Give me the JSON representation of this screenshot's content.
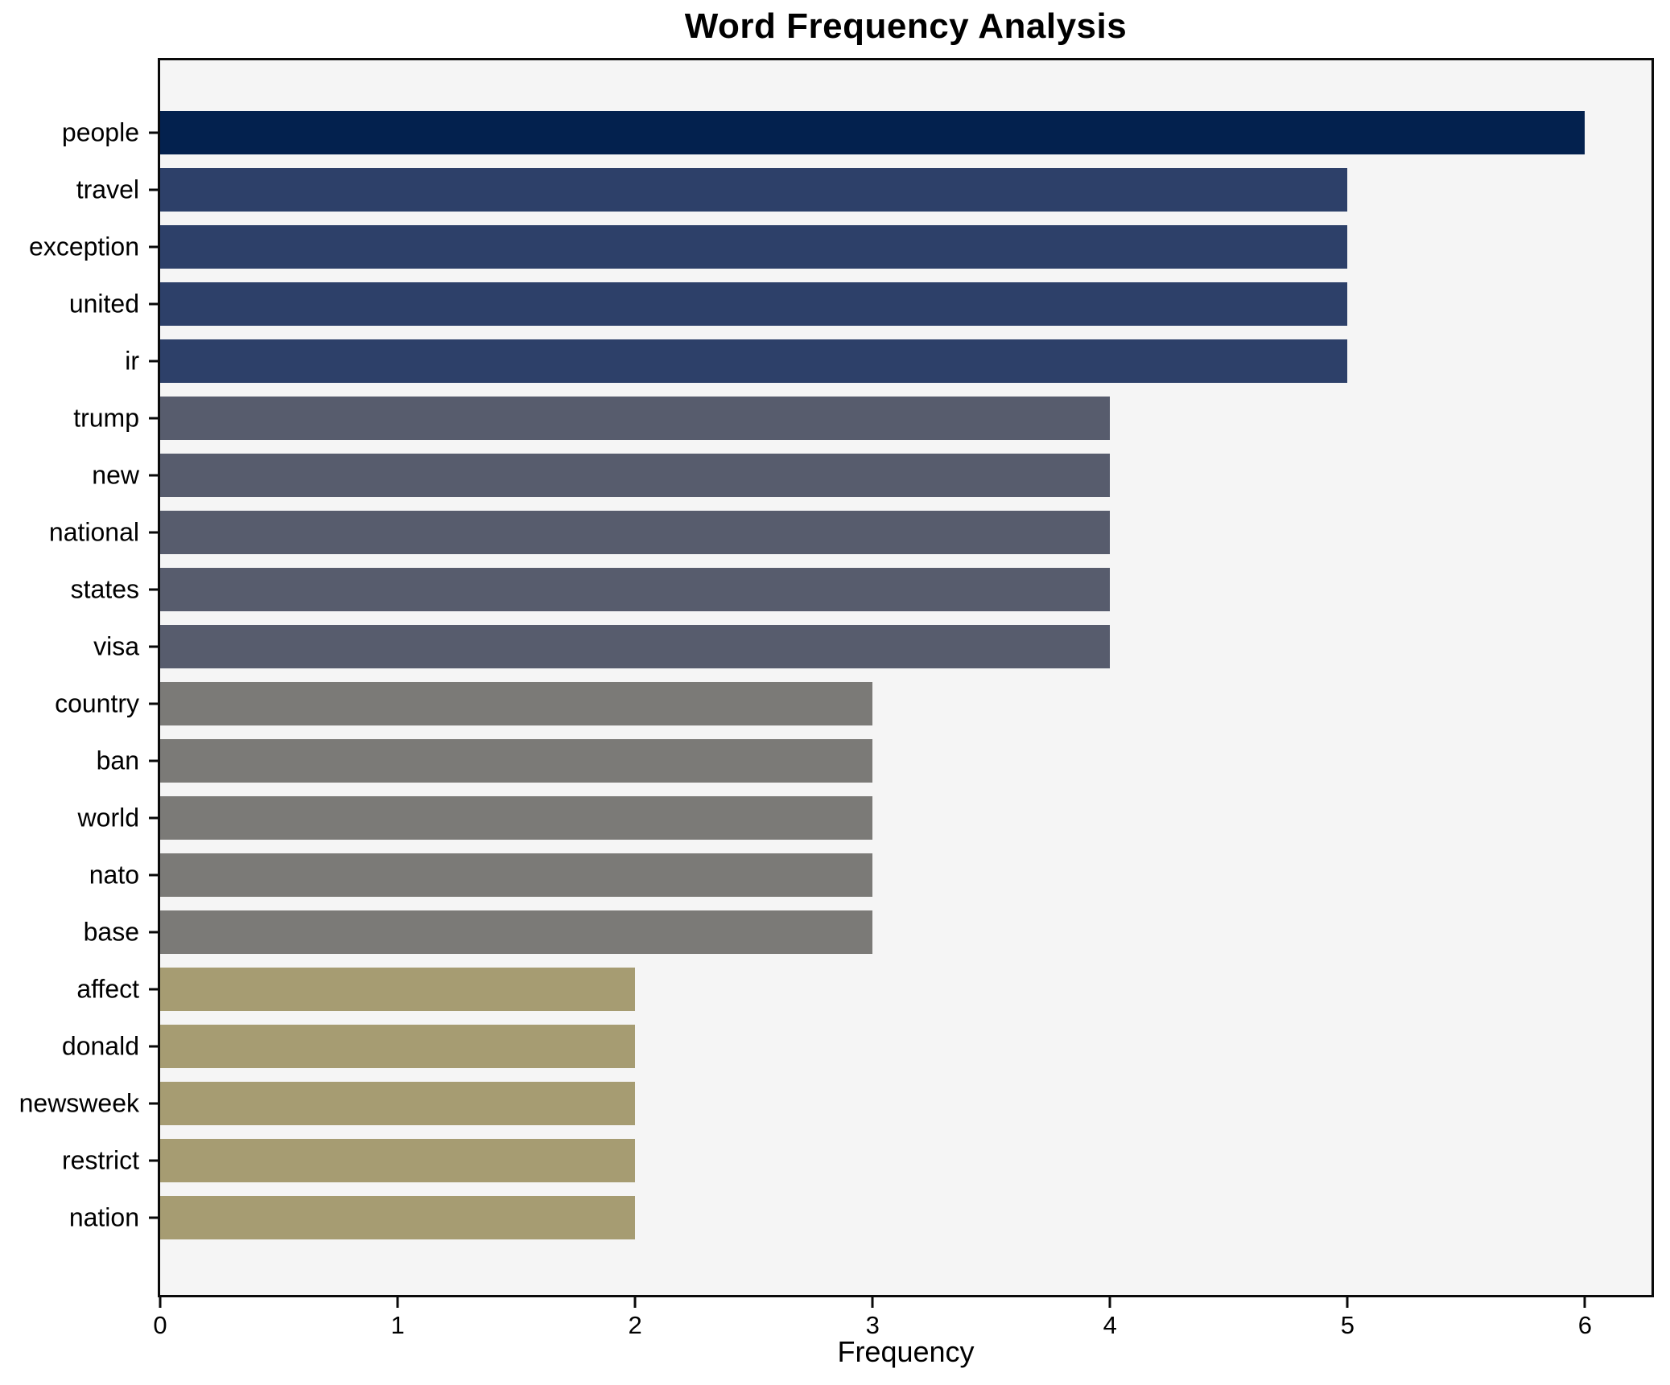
{
  "chart_data": {
    "type": "bar",
    "orientation": "horizontal",
    "title": "Word Frequency Analysis",
    "xlabel": "Frequency",
    "ylabel": "",
    "categories": [
      "people",
      "travel",
      "exception",
      "united",
      "ir",
      "trump",
      "new",
      "national",
      "states",
      "visa",
      "country",
      "ban",
      "world",
      "nato",
      "base",
      "affect",
      "donald",
      "newsweek",
      "restrict",
      "nation"
    ],
    "values": [
      6,
      5,
      5,
      5,
      5,
      4,
      4,
      4,
      4,
      4,
      3,
      3,
      3,
      3,
      3,
      2,
      2,
      2,
      2,
      2
    ],
    "bar_colors": [
      "#03214e",
      "#2d4069",
      "#2d4069",
      "#2d4069",
      "#2d4069",
      "#575c6d",
      "#575c6d",
      "#575c6d",
      "#575c6d",
      "#575c6d",
      "#7b7a77",
      "#7b7a77",
      "#7b7a77",
      "#7b7a77",
      "#7b7a77",
      "#a69c72",
      "#a69c72",
      "#a69c72",
      "#a69c72",
      "#a69c72"
    ],
    "xticks": [
      0,
      1,
      2,
      3,
      4,
      5,
      6
    ],
    "xlim": [
      0,
      6.28
    ],
    "grid": false,
    "legend_position": "none",
    "plot_background": "#f5f5f5",
    "figure_background": "#ffffff",
    "spine_color": "#0a0a0a"
  }
}
